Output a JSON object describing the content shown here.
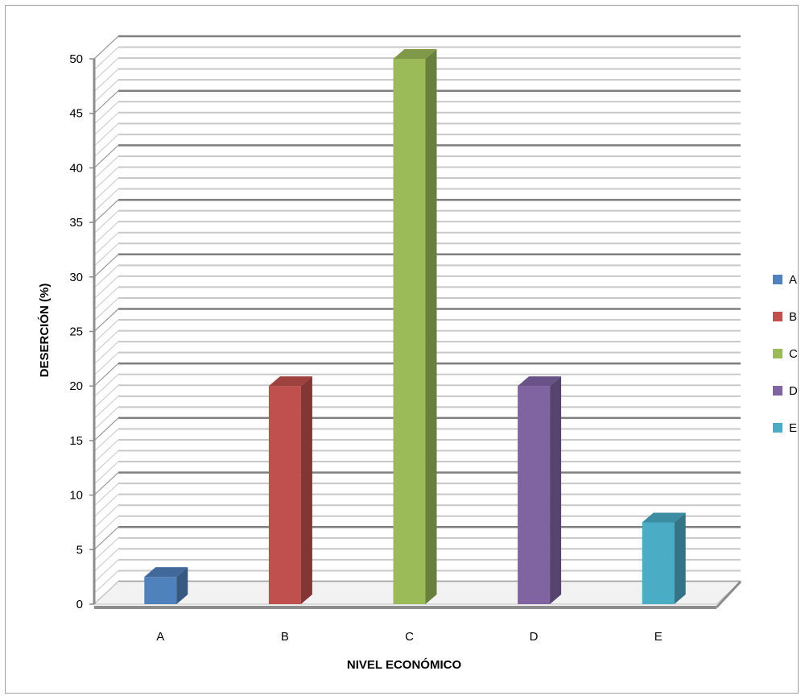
{
  "chart_data": {
    "type": "bar",
    "title": "",
    "categories": [
      "A",
      "B",
      "C",
      "D",
      "E"
    ],
    "series": [
      {
        "values": [
          2.5,
          20,
          50,
          20,
          7.5
        ]
      }
    ],
    "colors": [
      "#4F81BD",
      "#C0504D",
      "#9BBB59",
      "#8064A2",
      "#4BACC6"
    ],
    "xlabel": "NIVEL ECONÓMICO",
    "ylabel": "DESERCIÓN  (%)",
    "ylim": [
      0,
      50
    ],
    "yticks": [
      "0",
      "5",
      "10",
      "15",
      "20",
      "25",
      "30",
      "35",
      "40",
      "45",
      "50"
    ],
    "grid": true,
    "three_d": true,
    "legend": {
      "position": "right",
      "entries": [
        "A",
        "B",
        "C",
        "D",
        "E"
      ]
    }
  }
}
